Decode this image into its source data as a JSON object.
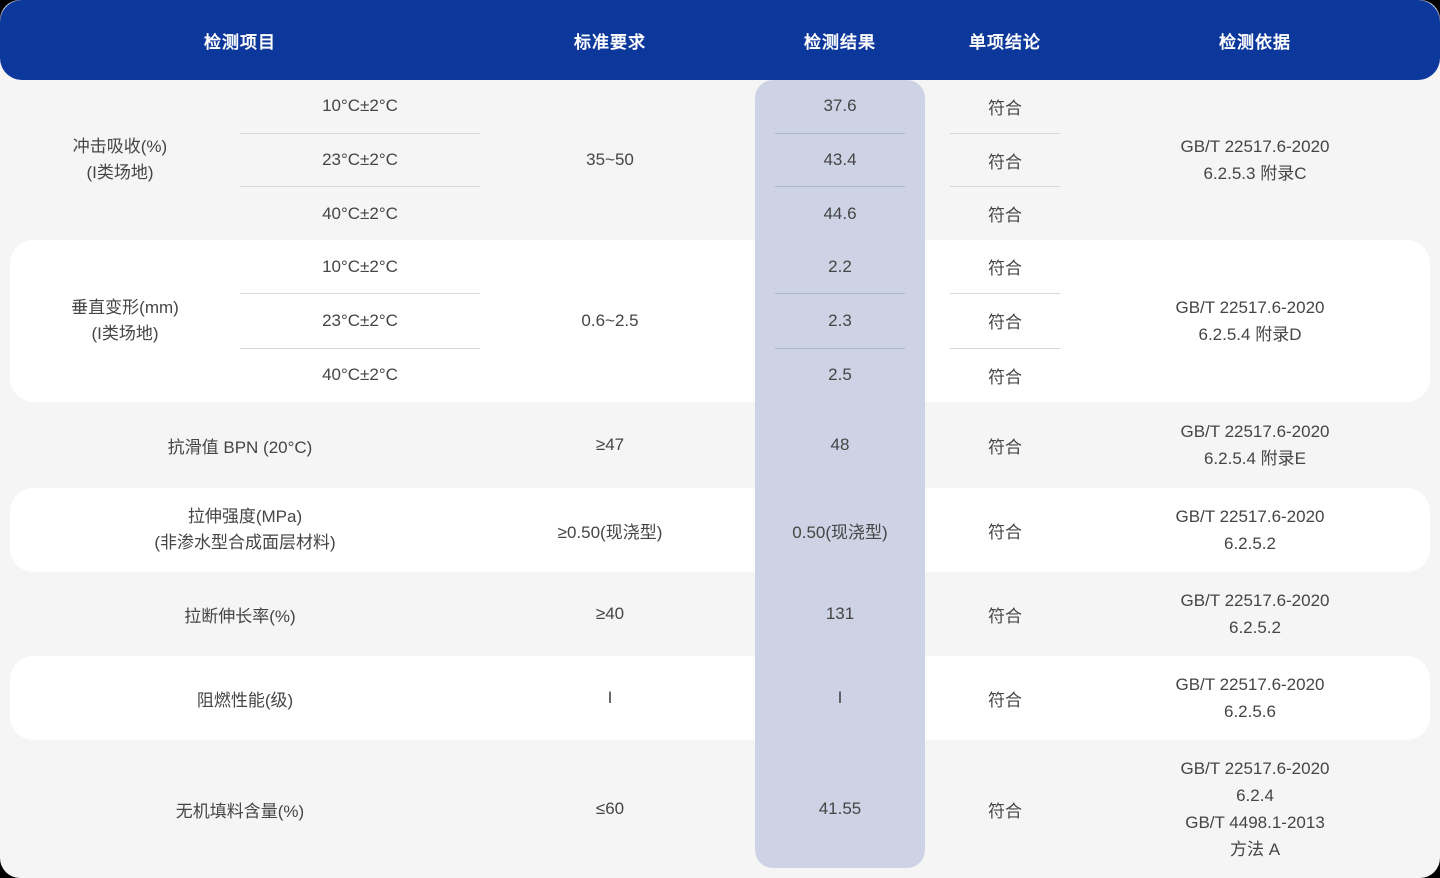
{
  "colors": {
    "header_bg": "#0d389b",
    "header_text": "#ffffff",
    "page_bg": "#f5f5f6",
    "card_bg": "#ffffff",
    "highlight": "#cdd3e4",
    "text": "#454545",
    "divider": "#d8d8d8",
    "divider_highlight": "#aeb5c8",
    "outside_bg": "#000000"
  },
  "table": {
    "columns": [
      "检测项目",
      "标准要求",
      "检测结果",
      "单项结论",
      "检测依据"
    ],
    "rows": [
      {
        "item": "冲击吸收(%)",
        "item_note": "(I类场地)",
        "conditions": [
          "10°C±2°C",
          "23°C±2°C",
          "40°C±2°C"
        ],
        "standard": "35~50",
        "results": [
          "37.6",
          "43.4",
          "44.6"
        ],
        "conclusions": [
          "符合",
          "符合",
          "符合"
        ],
        "basis": [
          "GB/T 22517.6-2020",
          "6.2.5.3 附录C"
        ]
      },
      {
        "item": "垂直变形(mm)",
        "item_note": "(I类场地)",
        "conditions": [
          "10°C±2°C",
          "23°C±2°C",
          "40°C±2°C"
        ],
        "standard": "0.6~2.5",
        "results": [
          "2.2",
          "2.3",
          "2.5"
        ],
        "conclusions": [
          "符合",
          "符合",
          "符合"
        ],
        "basis": [
          "GB/T 22517.6-2020",
          "6.2.5.4 附录D"
        ]
      },
      {
        "item": "抗滑值 BPN (20°C)",
        "standard": "≥47",
        "result": "48",
        "conclusion": "符合",
        "basis": [
          "GB/T 22517.6-2020",
          "6.2.5.4 附录E"
        ]
      },
      {
        "item": "拉伸强度(MPa)",
        "item_note": "(非渗水型合成面层材料)",
        "standard": "≥0.50(现浇型)",
        "result": "0.50(现浇型)",
        "conclusion": "符合",
        "basis": [
          "GB/T 22517.6-2020",
          "6.2.5.2"
        ]
      },
      {
        "item": "拉断伸长率(%)",
        "standard": "≥40",
        "result": "131",
        "conclusion": "符合",
        "basis": [
          "GB/T 22517.6-2020",
          "6.2.5.2"
        ]
      },
      {
        "item": "阻燃性能(级)",
        "standard": "I",
        "result": "I",
        "conclusion": "符合",
        "basis": [
          "GB/T 22517.6-2020",
          "6.2.5.6"
        ]
      },
      {
        "item": "无机填料含量(%)",
        "standard": "≤60",
        "result": "41.55",
        "conclusion": "符合",
        "basis": [
          "GB/T 22517.6-2020",
          "6.2.4",
          "GB/T 4498.1-2013",
          "方法 A"
        ]
      }
    ]
  }
}
